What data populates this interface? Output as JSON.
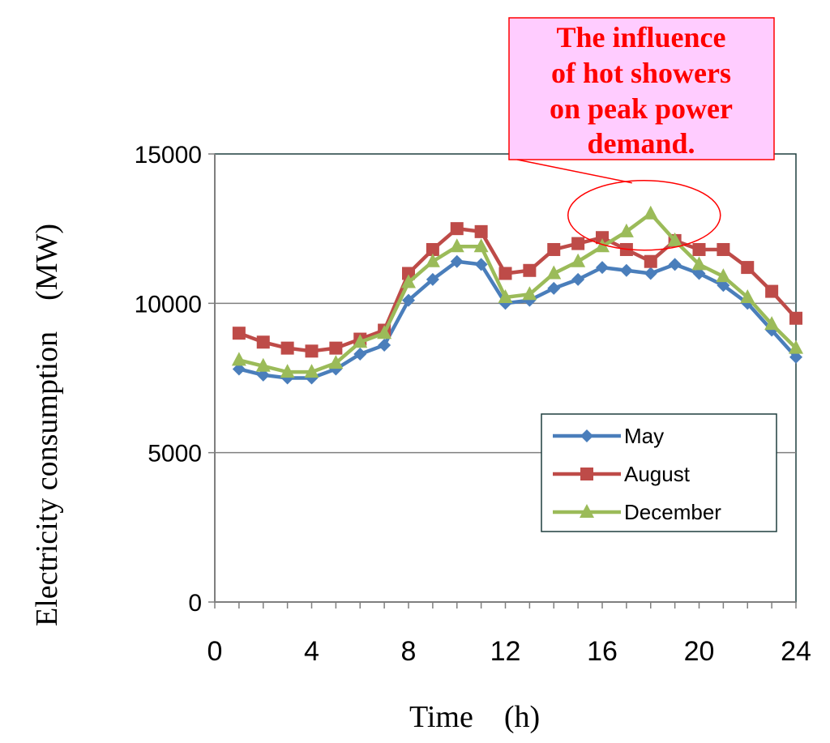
{
  "chart_data": {
    "type": "line",
    "title": "",
    "xlabel": "Time　(h)",
    "ylabel": "Electricity consumption　(MW)",
    "xlim": [
      0,
      24
    ],
    "ylim": [
      0,
      15000
    ],
    "x_ticks": [
      "0",
      "4",
      "8",
      "12",
      "16",
      "20",
      "24"
    ],
    "y_ticks": [
      "0",
      "5000",
      "10000",
      "15000"
    ],
    "grid": "horizontal",
    "legend_position": "bottom-right",
    "x": [
      1,
      2,
      3,
      4,
      5,
      6,
      7,
      8,
      9,
      10,
      11,
      12,
      13,
      14,
      15,
      16,
      17,
      18,
      19,
      20,
      21,
      22,
      23,
      24
    ],
    "series": [
      {
        "name": "May",
        "color": "#4a7ebb",
        "marker": "diamond",
        "values": [
          7800,
          7600,
          7500,
          7500,
          7800,
          8300,
          8600,
          10100,
          10800,
          11400,
          11300,
          10000,
          10100,
          10500,
          10800,
          11200,
          11100,
          11000,
          11300,
          11000,
          10600,
          10000,
          9100,
          8200
        ]
      },
      {
        "name": "August",
        "color": "#be4b48",
        "marker": "square",
        "values": [
          9000,
          8700,
          8500,
          8400,
          8500,
          8800,
          9100,
          11000,
          11800,
          12500,
          12400,
          11000,
          11100,
          11800,
          12000,
          12200,
          11800,
          11400,
          12100,
          11800,
          11800,
          11200,
          10400,
          9500
        ]
      },
      {
        "name": "December",
        "color": "#9bbb59",
        "marker": "triangle",
        "values": [
          8100,
          7900,
          7700,
          7700,
          8000,
          8700,
          9000,
          10700,
          11400,
          11900,
          11900,
          10200,
          10300,
          11000,
          11400,
          11900,
          12400,
          13000,
          12100,
          11300,
          10900,
          10200,
          9300,
          8500
        ]
      }
    ],
    "annotation": {
      "text_lines": [
        "The influence",
        "of hot showers",
        "on peak power",
        "demand."
      ],
      "fill": "#ffccff",
      "text_color": "#ff0000",
      "target_x": 18
    }
  }
}
